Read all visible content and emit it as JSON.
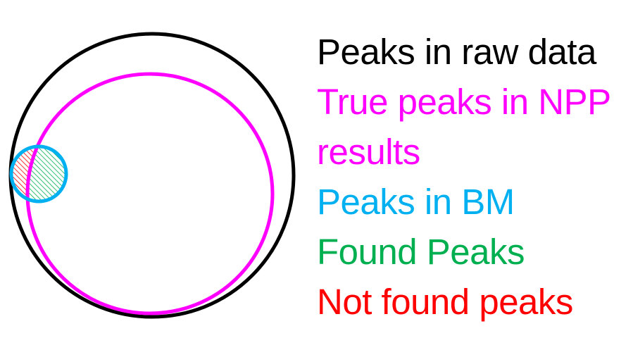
{
  "legend": [
    {
      "key": "raw",
      "lines": [
        "Peaks in raw data"
      ],
      "color": "#000000"
    },
    {
      "key": "npp",
      "lines": [
        "True peaks in NPP",
        "results"
      ],
      "color": "#ff00ff"
    },
    {
      "key": "bm",
      "lines": [
        "Peaks in BM"
      ],
      "color": "#00b0f0"
    },
    {
      "key": "found",
      "lines": [
        "Found Peaks"
      ],
      "color": "#00b050"
    },
    {
      "key": "notfound",
      "lines": [
        "Not found peaks"
      ],
      "color": "#ff0000"
    }
  ]
}
